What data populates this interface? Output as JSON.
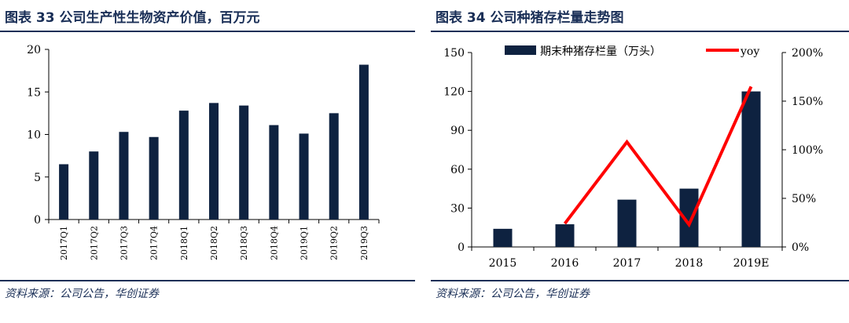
{
  "panels": [
    {
      "title": "图表 33   公司生产性生物资产价值，百万元",
      "source": "资料来源：公司公告，华创证券"
    },
    {
      "title": "图表 34   公司种猪存栏量走势图",
      "source": "资料来源：公司公告，华创证券"
    }
  ],
  "colors": {
    "bar": "#0e2240",
    "line": "#ff0000",
    "rule": "#1a2f57"
  },
  "chart_data": [
    {
      "type": "bar",
      "categories": [
        "2017Q1",
        "2017Q2",
        "2017Q3",
        "2017Q4",
        "2018Q1",
        "2018Q2",
        "2018Q3",
        "2018Q4",
        "2019Q1",
        "2019Q2",
        "2019Q3"
      ],
      "values": [
        6.5,
        8.0,
        10.3,
        9.7,
        12.8,
        13.7,
        13.4,
        11.1,
        10.1,
        12.5,
        18.2
      ],
      "ylim": [
        0,
        20
      ],
      "yticks": [
        0,
        5,
        10,
        15,
        20
      ],
      "grid": false
    },
    {
      "type": "bar+line",
      "categories": [
        "2015",
        "2016",
        "2017",
        "2018",
        "2019E"
      ],
      "series": [
        {
          "name": "期末种猪存栏量（万头）",
          "type": "bar",
          "axis": "left",
          "values": [
            14,
            17.5,
            36.5,
            45,
            120
          ]
        },
        {
          "name": "yoy",
          "type": "line",
          "axis": "right",
          "values": [
            null,
            0.24,
            1.08,
            0.23,
            1.65
          ]
        }
      ],
      "ylim_left": [
        0,
        150
      ],
      "yticks_left": [
        0,
        30,
        60,
        90,
        120,
        150
      ],
      "ylim_right": [
        0,
        2.0
      ],
      "yticks_right": [
        "0%",
        "50%",
        "100%",
        "150%",
        "200%"
      ],
      "legend": "top",
      "grid": false
    }
  ]
}
